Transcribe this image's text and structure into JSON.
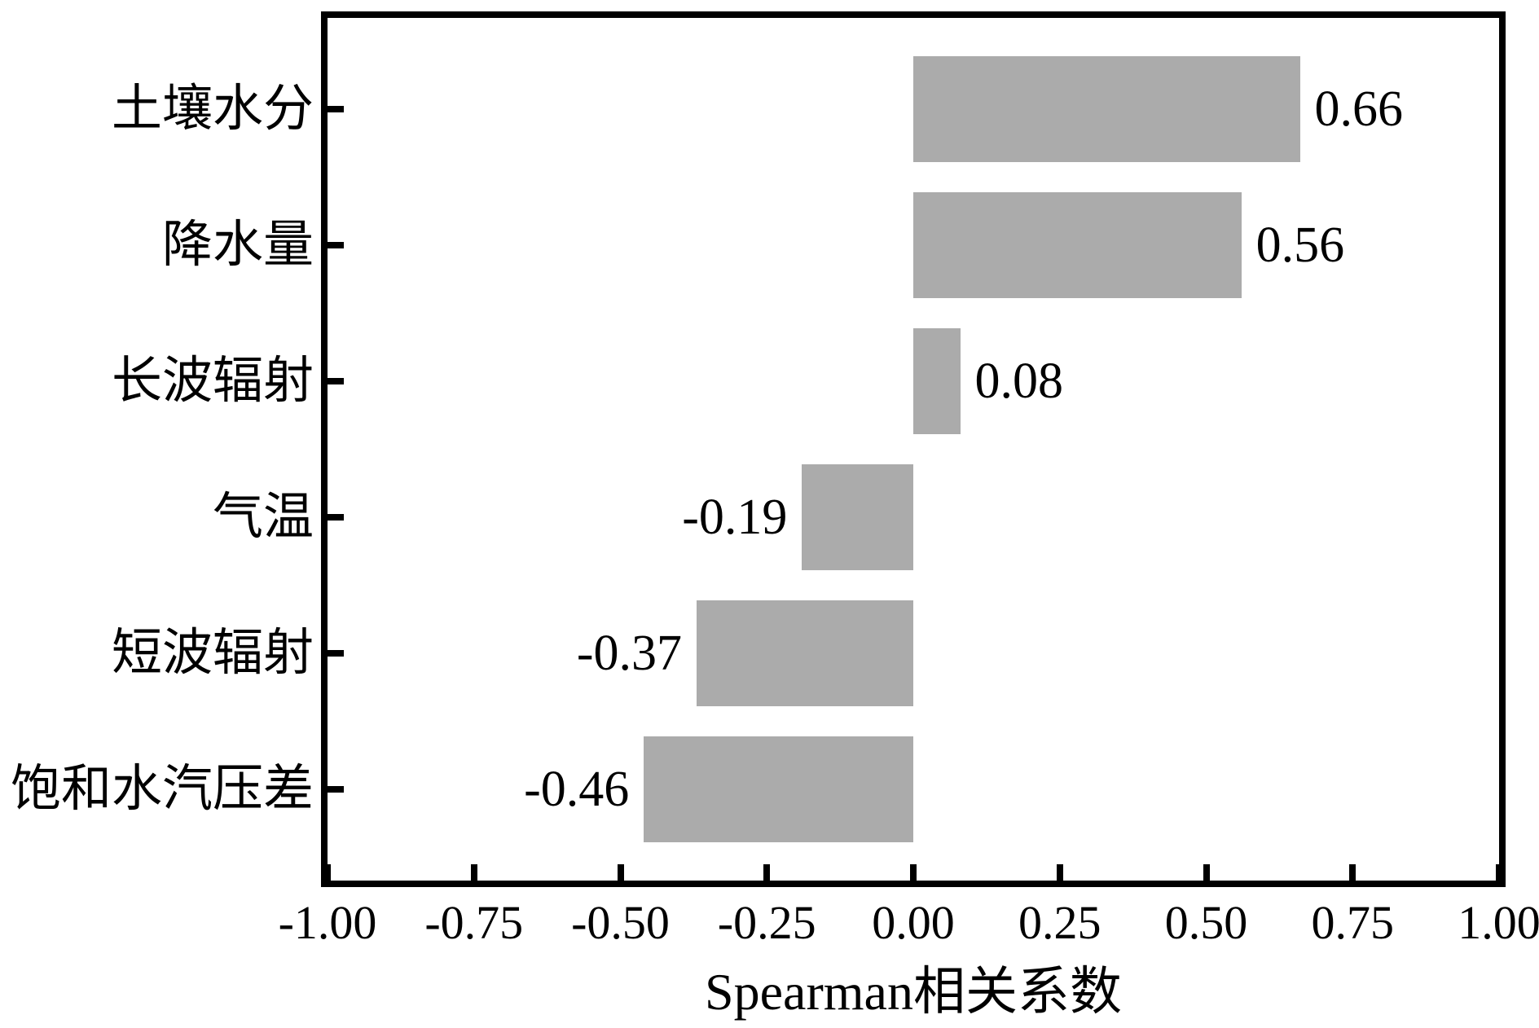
{
  "chart_data": {
    "type": "bar",
    "orientation": "horizontal",
    "title": "",
    "xlabel": "Spearman相关系数",
    "ylabel": "",
    "categories": [
      "土壤水分",
      "降水量",
      "长波辐射",
      "气温",
      "短波辐射",
      "饱和水汽压差"
    ],
    "values": [
      0.66,
      0.56,
      0.08,
      -0.19,
      -0.37,
      -0.46
    ],
    "value_labels": [
      "0.66",
      "0.56",
      "0.08",
      "-0.19",
      "-0.37",
      "-0.46"
    ],
    "xlim": [
      -1.0,
      1.0
    ],
    "x_ticks": [
      -1.0,
      -0.75,
      -0.5,
      -0.25,
      0.0,
      0.25,
      0.5,
      0.75,
      1.0
    ],
    "x_tick_labels": [
      "-1.00",
      "-0.75",
      "-0.50",
      "-0.25",
      "0.00",
      "0.25",
      "0.50",
      "0.75",
      "1.00"
    ],
    "grid": false,
    "legend": null,
    "bar_color": "#ababab",
    "axis_color": "#000000",
    "background_color": "#ffffff"
  }
}
